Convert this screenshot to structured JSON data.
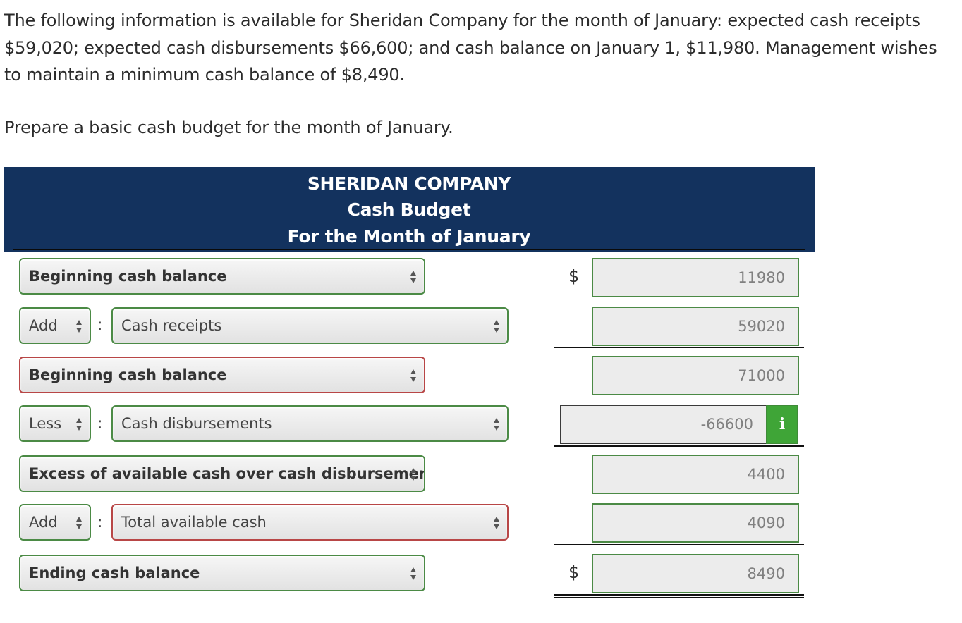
{
  "problem_text": "The following information is available for Sheridan Company for the month of January: expected cash receipts $59,020; expected cash disbursements $66,600; and cash balance on January 1, $11,980. Management wishes to maintain a minimum cash balance of $8,490.",
  "instruction_text": "Prepare a basic cash budget for the month of January.",
  "budget_header": {
    "company": "SHERIDAN COMPANY",
    "title": "Cash Budget",
    "period": "For the Month of January"
  },
  "currency_symbol": "$",
  "rows": [
    {
      "label": "Beginning cash balance",
      "amount": "11980"
    },
    {
      "operator": "Add",
      "label": "Cash receipts",
      "amount": "59020"
    },
    {
      "label": "Beginning cash balance",
      "amount": "71000"
    },
    {
      "operator": "Less",
      "label": "Cash disbursements",
      "amount": "-66600"
    },
    {
      "label": "Excess of available cash over cash disbursements",
      "amount": "4400"
    },
    {
      "operator": "Add",
      "label": "Total available cash",
      "amount": "4090"
    },
    {
      "label": "Ending cash balance",
      "amount": "8490"
    }
  ],
  "info_button_label": "i",
  "colors": {
    "header_bg": "#13325e",
    "correct_border": "#4b8a45",
    "incorrect_border": "#b84646",
    "info_button_bg": "#3fa537"
  },
  "icons": {
    "dropdown_arrows": "up-down-arrows-icon",
    "info": "info-icon"
  }
}
